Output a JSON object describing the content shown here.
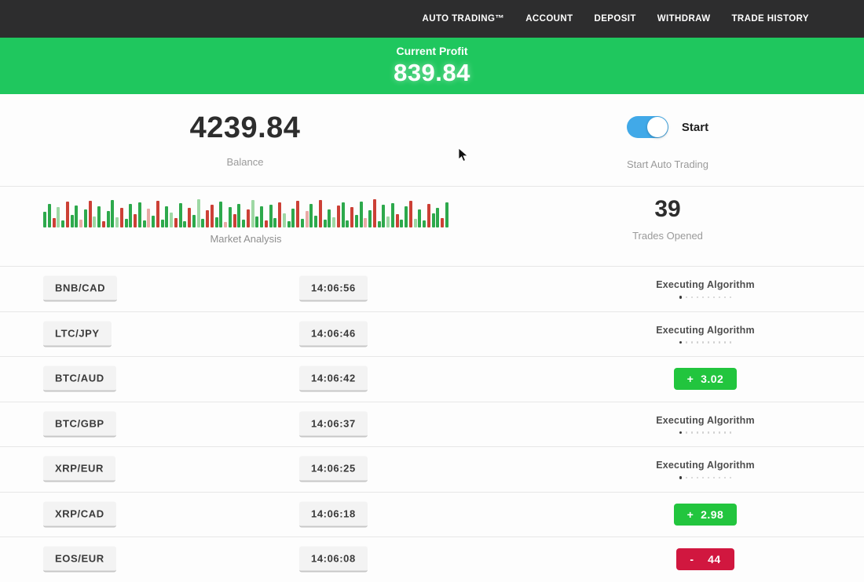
{
  "navbar": {
    "items": [
      {
        "label": "AUTO TRADING™"
      },
      {
        "label": "ACCOUNT"
      },
      {
        "label": "DEPOSIT"
      },
      {
        "label": "WITHDRAW"
      },
      {
        "label": "TRADE HISTORY"
      }
    ]
  },
  "profit_banner": {
    "label": "Current Profit",
    "value": "839.84",
    "bg_color": "#1fc75e"
  },
  "account": {
    "balance_value": "4239.84",
    "balance_label": "Balance",
    "toggle_label": "Start",
    "toggle_sub": "Start Auto Trading",
    "toggle_on": true,
    "toggle_color": "#41a9e8"
  },
  "market": {
    "label": "Market Analysis",
    "trades_value": "39",
    "trades_label": "Trades Opened"
  },
  "chart_data": {
    "type": "bar",
    "title": "Market Analysis",
    "xlabel": "",
    "ylabel": "",
    "heights": [
      20,
      30,
      12,
      26,
      9,
      33,
      16,
      28,
      10,
      23,
      34,
      14,
      27,
      8,
      21,
      35,
      13,
      25,
      11,
      30,
      17,
      32,
      9,
      24,
      15,
      34,
      10,
      27,
      19,
      12,
      31,
      8,
      25,
      16,
      36,
      11,
      22,
      29,
      13,
      33,
      7,
      26,
      17,
      30,
      10,
      23,
      35,
      14,
      27,
      9,
      29,
      12,
      32,
      18,
      8,
      24,
      34,
      11,
      21,
      30,
      15,
      35,
      10,
      23,
      13,
      28,
      32,
      9,
      26,
      16,
      33,
      12,
      22,
      36,
      8,
      29,
      14,
      31,
      17,
      10,
      27,
      34,
      11,
      23,
      9,
      30,
      18,
      25,
      12,
      32
    ],
    "colors": "ggrGgrggRgrGgrggGrggrggRgrggGrggrgGgrrggRgrggrGggrggrGggrgRggrggGrggrggRgrggGgrggrGggrggrg",
    "palette": {
      "g": "#2da94c",
      "G": "#9ed8a4",
      "r": "#cc4036",
      "R": "#e9aaa5"
    }
  },
  "trades": [
    {
      "pair": "BNB/CAD",
      "time": "14:06:56",
      "status": "executing",
      "status_text": "Executing Algorithm"
    },
    {
      "pair": "LTC/JPY",
      "time": "14:06:46",
      "status": "executing",
      "status_text": "Executing Algorithm"
    },
    {
      "pair": "BTC/AUD",
      "time": "14:06:42",
      "status": "profit",
      "result": "+  3.02"
    },
    {
      "pair": "BTC/GBP",
      "time": "14:06:37",
      "status": "executing",
      "status_text": "Executing Algorithm"
    },
    {
      "pair": "XRP/EUR",
      "time": "14:06:25",
      "status": "executing",
      "status_text": "Executing Algorithm"
    },
    {
      "pair": "XRP/CAD",
      "time": "14:06:18",
      "status": "profit",
      "result": "+  2.98"
    },
    {
      "pair": "EOS/EUR",
      "time": "14:06:08",
      "status": "loss",
      "result": "-    44"
    }
  ],
  "status_colors": {
    "profit": "#22c53e",
    "loss": "#d1173f"
  },
  "loader": {
    "dot_count": 10
  }
}
